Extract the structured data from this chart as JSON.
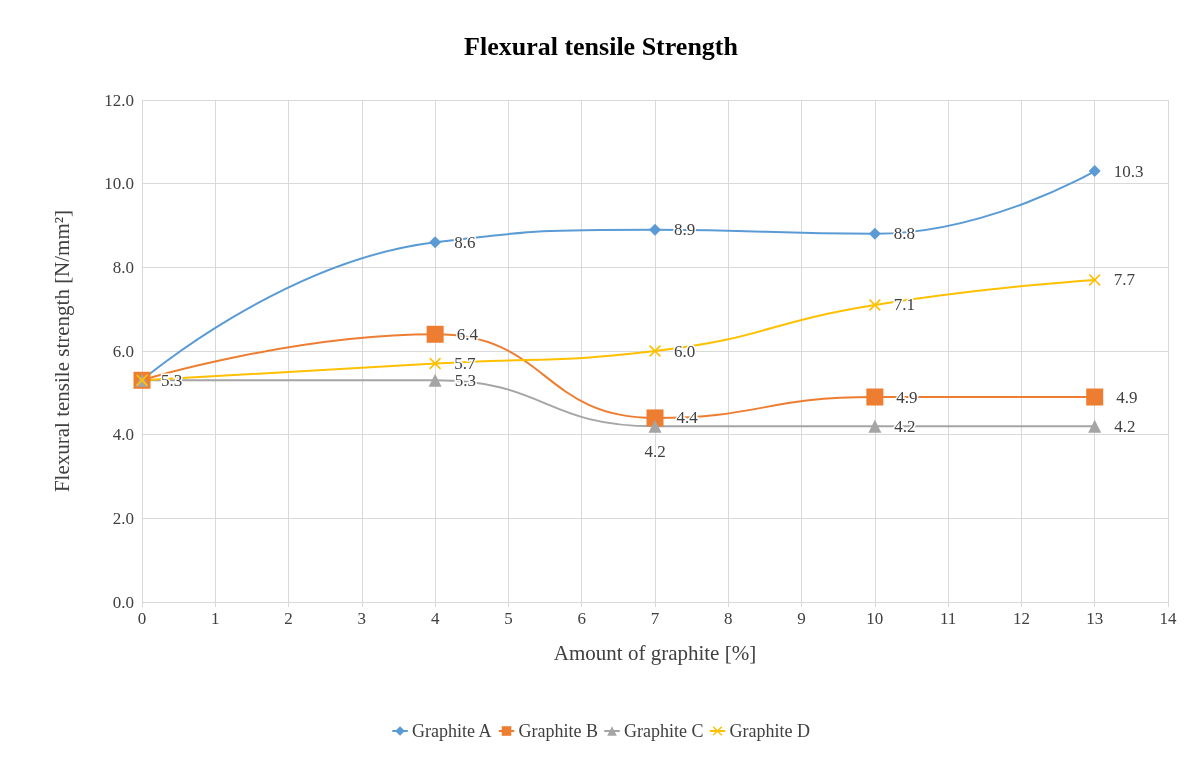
{
  "chart_data": {
    "type": "line",
    "title": "Flexural tensile Strength",
    "xlabel": "Amount of graphite [%]",
    "ylabel": "Flexural tensile strength [N/mm²]",
    "x": [
      0,
      4,
      7,
      10,
      13
    ],
    "series": [
      {
        "name": "Graphite A",
        "color": "#5b9bd5",
        "marker": "diamond",
        "values": [
          5.3,
          8.6,
          8.9,
          8.8,
          10.3
        ],
        "value_labels": [
          null,
          "8.6",
          "8.9",
          "8.8",
          "10.3"
        ]
      },
      {
        "name": "Graphite B",
        "color": "#ed7d31",
        "marker": "square",
        "values": [
          5.3,
          6.4,
          4.4,
          4.9,
          4.9
        ],
        "value_labels": [
          null,
          "6.4",
          "4.4",
          "4.9",
          "4.9"
        ]
      },
      {
        "name": "Graphite C",
        "color": "#a5a5a5",
        "marker": "triangle",
        "values": [
          5.3,
          5.3,
          4.2,
          4.2,
          4.2
        ],
        "value_labels": [
          null,
          "5.3",
          "4.2",
          "4.2",
          "4.2"
        ]
      },
      {
        "name": "Graphite D",
        "color": "#ffc000",
        "marker": "cross",
        "values": [
          5.3,
          5.7,
          6.0,
          7.1,
          7.7
        ],
        "value_labels": [
          "5.3",
          "5.7",
          "6.0",
          "7.1",
          "7.7"
        ]
      }
    ],
    "xlim": [
      0,
      14
    ],
    "xticks": [
      0,
      1,
      2,
      3,
      4,
      5,
      6,
      7,
      8,
      9,
      10,
      11,
      12,
      13,
      14
    ],
    "ylim": [
      0,
      12
    ],
    "yticks": [
      {
        "value": 0,
        "label": "0.0"
      },
      {
        "value": 2,
        "label": "2.0"
      },
      {
        "value": 4,
        "label": "4.0"
      },
      {
        "value": 6,
        "label": "6.0"
      },
      {
        "value": 8,
        "label": "8.0"
      },
      {
        "value": 10,
        "label": "10.0"
      },
      {
        "value": 12,
        "label": "12.0"
      }
    ],
    "grid": true,
    "legend": "bottom"
  }
}
